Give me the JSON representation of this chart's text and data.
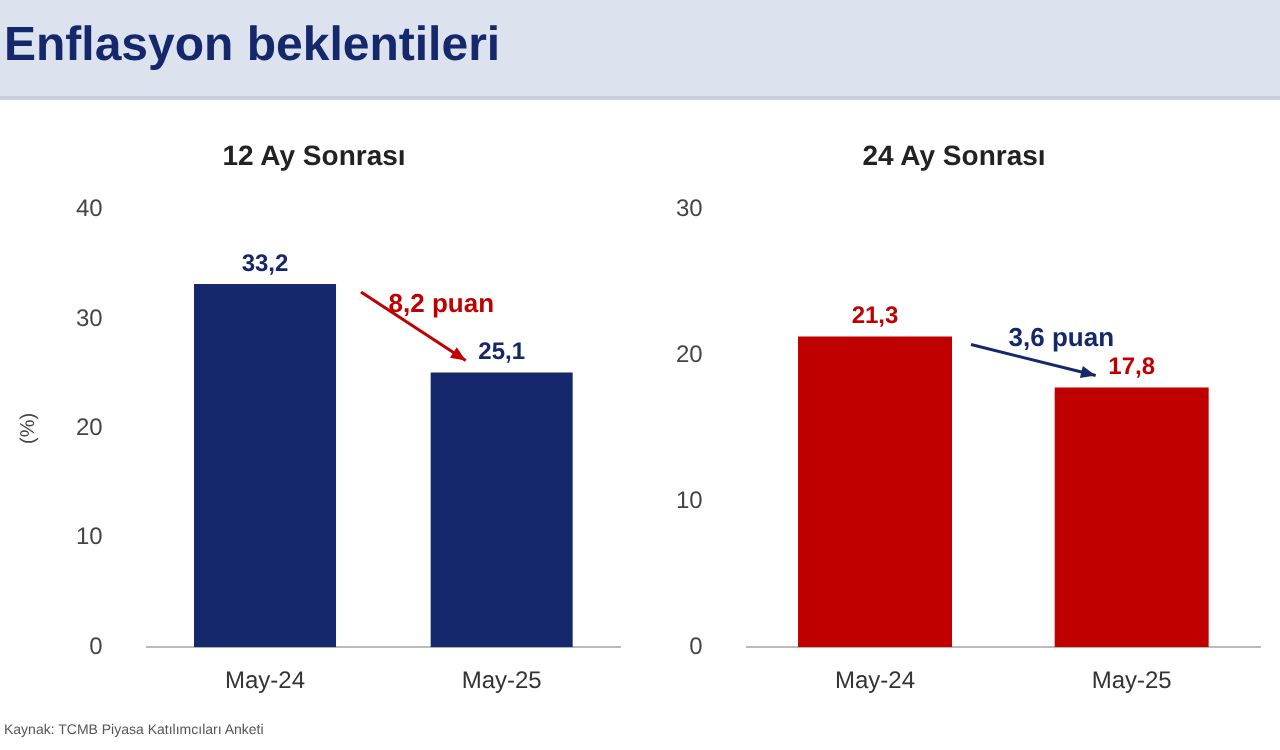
{
  "chart_data": [
    {
      "type": "other",
      "title": "Enflasyon beklentileri",
      "annotations": [
        "Kaynak: TCMB Piyasa Katılımcıları Anketi"
      ]
    },
    {
      "type": "bar",
      "title": "12 Ay Sonrası",
      "ylabel": "(%)",
      "categories": [
        "May-24",
        "May-25"
      ],
      "values": [
        33.2,
        25.1
      ],
      "color": "#14286b",
      "value_labels": [
        "33,2",
        "25,1"
      ],
      "ylim": [
        0,
        40
      ],
      "yticks": [
        0,
        10,
        20,
        30,
        40
      ],
      "grid": false,
      "annotations": [
        "8,2 puan"
      ]
    },
    {
      "type": "bar",
      "title": "24 Ay Sonrası",
      "categories": [
        "May-24",
        "May-25"
      ],
      "values": [
        21.3,
        17.8
      ],
      "color": "#c00000",
      "value_labels": [
        "21,3",
        "17,8"
      ],
      "ylim": [
        0,
        30
      ],
      "yticks": [
        0,
        10,
        20,
        30
      ],
      "grid": false,
      "annotations": [
        "3,6 puan"
      ]
    }
  ]
}
